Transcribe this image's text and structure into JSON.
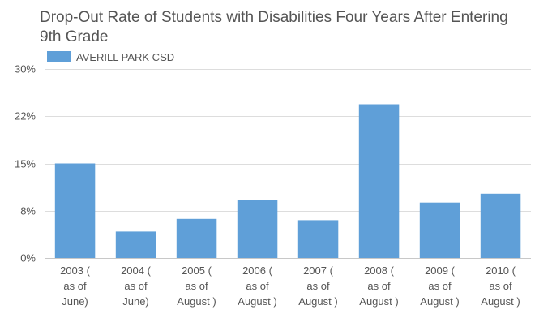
{
  "chart_data": {
    "type": "bar",
    "title": "Drop-Out Rate of Students with Disabilities Four Years After Entering 9th Grade",
    "xlabel": "",
    "ylabel": "",
    "ylim": [
      0,
      30
    ],
    "yticks": [
      0,
      7.5,
      15,
      22.5,
      30
    ],
    "ytick_labels": [
      "0%",
      "8%",
      "15%",
      "22%",
      "30%"
    ],
    "categories": [
      "2003 ( as of June)",
      "2004 ( as of June)",
      "2005 ( as of August )",
      "2006 ( as of August )",
      "2007 ( as of August )",
      "2008 ( as of August )",
      "2009 ( as of August )",
      "2010 ( as of August )"
    ],
    "category_lines": [
      [
        "2003 (",
        "as of",
        "June)"
      ],
      [
        "2004 (",
        "as of",
        "June)"
      ],
      [
        "2005 (",
        "as of",
        "August )"
      ],
      [
        "2006 (",
        "as of",
        "August )"
      ],
      [
        "2007 (",
        "as of",
        "August )"
      ],
      [
        "2008 (",
        "as of",
        "August )"
      ],
      [
        "2009 (",
        "as of",
        "August )"
      ],
      [
        "2010 (",
        "as of",
        "August )"
      ]
    ],
    "series": [
      {
        "name": "AVERILL PARK CSD",
        "color": "#5f9fd8",
        "values": [
          15.0,
          4.2,
          6.2,
          9.2,
          6.0,
          24.4,
          8.8,
          10.2
        ]
      }
    ],
    "grid": true,
    "legend_position": "top-left",
    "gridline_color": "#dddddd",
    "axis_color": "#c8c8c8"
  }
}
